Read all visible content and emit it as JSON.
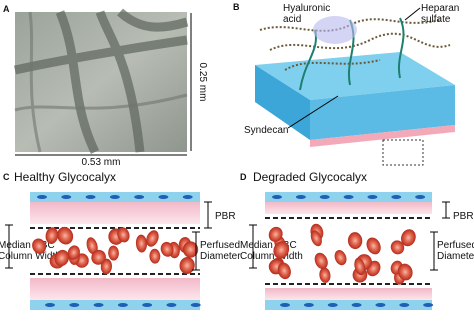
{
  "panel_a": {
    "label": "A",
    "scale_vertical": "0.25 mm",
    "scale_horizontal": "0.53 mm"
  },
  "panel_b": {
    "label": "B",
    "hyaluronic_acid": [
      "Hyaluronic",
      "acid"
    ],
    "heparan_sulfate": [
      "Heparan",
      "sulfate"
    ],
    "syndecan": "Syndecan"
  },
  "panel_c": {
    "label": "C",
    "title": "Healthy Glycocalyx",
    "pbr": "PBR",
    "median_rbc": [
      "Median RBC",
      "Column Width"
    ],
    "perfused": [
      "Perfused",
      "Diameter"
    ]
  },
  "panel_d": {
    "label": "D",
    "title": "Degraded Glycocalyx",
    "pbr": "PBR",
    "median_rbc": [
      "Median RBC",
      "Column Width"
    ],
    "perfused": [
      "Perfused",
      "Diameter"
    ]
  }
}
